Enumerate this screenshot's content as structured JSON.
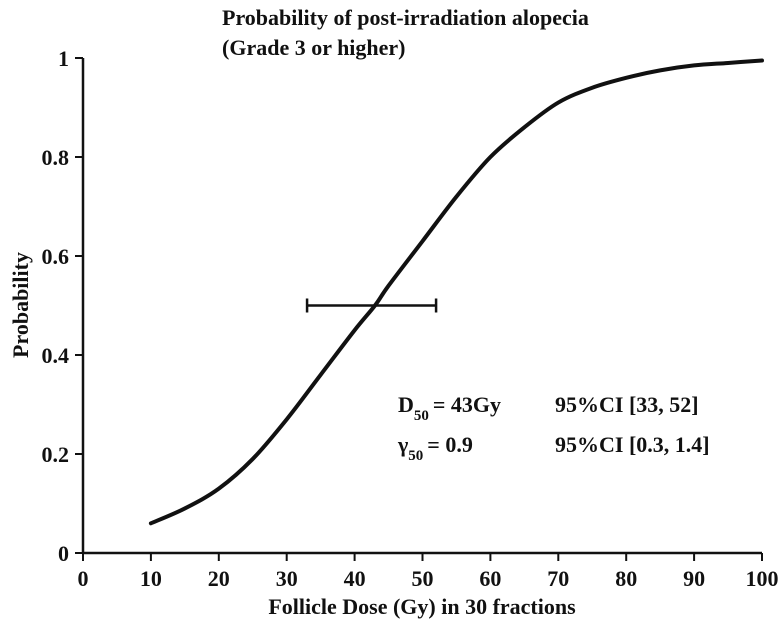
{
  "chart_data": {
    "type": "line",
    "title": "Probability of post-irradiation alopecia",
    "subtitle": "(Grade 3 or higher)",
    "xlabel": "Follicle Dose (Gy) in 30 fractions",
    "ylabel": "Probability",
    "xlim": [
      0,
      100
    ],
    "ylim": [
      0,
      1
    ],
    "x_ticks": [
      0,
      10,
      20,
      30,
      40,
      50,
      60,
      70,
      80,
      90,
      100
    ],
    "y_ticks": [
      0,
      0.2,
      0.4,
      0.6,
      0.8,
      1
    ],
    "x_tick_labels": [
      "0",
      "10",
      "20",
      "30",
      "40",
      "50",
      "60",
      "70",
      "80",
      "90",
      "100"
    ],
    "y_tick_labels": [
      "0",
      "0.2",
      "0.4",
      "0.6",
      "0.8",
      "1"
    ],
    "grid": false,
    "series": [
      {
        "x": [
          10,
          15,
          20,
          25,
          30,
          35,
          40,
          43,
          45,
          50,
          55,
          60,
          65,
          70,
          75,
          80,
          85,
          90,
          95,
          100
        ],
        "y": [
          0.06,
          0.09,
          0.13,
          0.19,
          0.27,
          0.36,
          0.45,
          0.5,
          0.54,
          0.63,
          0.72,
          0.8,
          0.86,
          0.91,
          0.94,
          0.96,
          0.975,
          0.985,
          0.99,
          0.995
        ]
      }
    ],
    "error_bar": {
      "x_low": 33,
      "x_high": 52,
      "y": 0.5
    },
    "annotations": [
      {
        "symbol": "D",
        "subscript": "50",
        "value": "= 43Gy",
        "ci": "95%CI [33, 52]"
      },
      {
        "symbol": "γ",
        "subscript": "50",
        "value": "= 0.9",
        "ci": "95%CI [0.3, 1.4]"
      }
    ]
  }
}
